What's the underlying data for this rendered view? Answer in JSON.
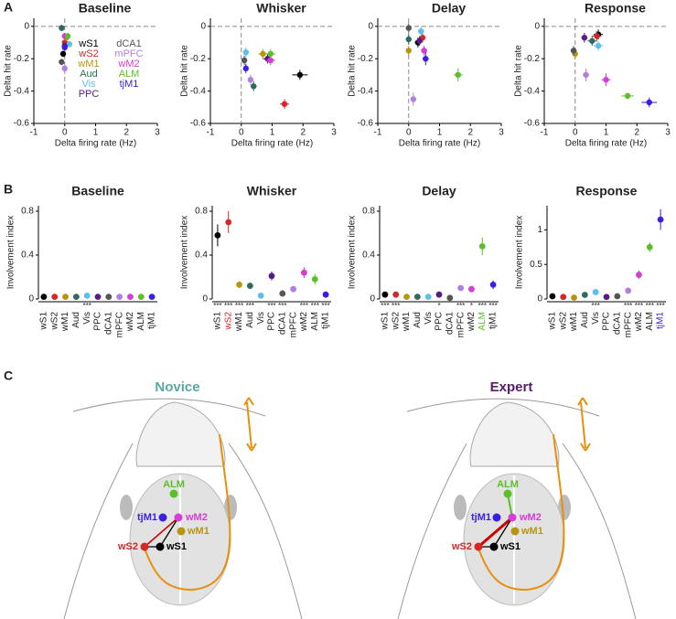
{
  "panels": [
    "A",
    "B",
    "C"
  ],
  "chart_data": [
    {
      "type": "scatter",
      "title": "Baseline",
      "xlabel": "Delta firing rate (Hz)",
      "ylabel": "Delta hit rate",
      "categories": [
        "wS1",
        "wS2",
        "wM1",
        "Aud",
        "Vis",
        "PPC",
        "dCA1",
        "mPFC",
        "wM2",
        "ALM",
        "tjM1"
      ],
      "colors": [
        "#000000",
        "#d62728",
        "#b8960c",
        "#2e6b5e",
        "#5bc0eb",
        "#5a1a8a",
        "#555555",
        "#b07fe0",
        "#d63cd6",
        "#5cbf2a",
        "#3a1fe0"
      ],
      "x": [
        -0.05,
        0,
        0.05,
        -0.1,
        0.15,
        0,
        -0.1,
        0,
        0,
        0.1,
        0
      ],
      "y": [
        -0.17,
        -0.1,
        -0.07,
        -0.01,
        -0.11,
        -0.12,
        -0.22,
        -0.26,
        -0.06,
        -0.06,
        -0.13
      ],
      "xerr": [
        0.05,
        0.05,
        0.05,
        0.05,
        0.08,
        0.05,
        0.05,
        0.05,
        0.05,
        0.05,
        0.05
      ],
      "yerr": [
        0.02,
        0.02,
        0.02,
        0.02,
        0.02,
        0.02,
        0.02,
        0.02,
        0.02,
        0.02,
        0.02
      ],
      "xlim": [
        -1,
        3
      ],
      "ylim": [
        -0.6,
        0.05
      ],
      "xticks": [
        -1,
        0,
        1,
        2,
        3
      ],
      "yticks": [
        -0.6,
        -0.4,
        -0.2,
        0
      ],
      "vline": 0,
      "hline": 0
    },
    {
      "type": "scatter",
      "title": "Whisker",
      "xlabel": "Delta firing rate (Hz)",
      "ylabel": "Delta hit rate",
      "colors": [
        "#000000",
        "#d62728",
        "#b8960c",
        "#2e6b5e",
        "#5bc0eb",
        "#5a1a8a",
        "#555555",
        "#b07fe0",
        "#d63cd6",
        "#5cbf2a",
        "#3a1fe0"
      ],
      "x": [
        1.9,
        1.4,
        0.7,
        0.4,
        0.15,
        0.85,
        0.1,
        0.3,
        0.95,
        0.95,
        0.15
      ],
      "y": [
        -0.3,
        -0.48,
        -0.17,
        -0.37,
        -0.16,
        -0.2,
        -0.21,
        -0.33,
        -0.21,
        -0.17,
        -0.26
      ],
      "xerr": [
        0.25,
        0.15,
        0.15,
        0.1,
        0.05,
        0.15,
        0.05,
        0.05,
        0.15,
        0.15,
        0.05
      ],
      "yerr": [
        0.03,
        0.03,
        0.03,
        0.03,
        0.03,
        0.03,
        0.03,
        0.03,
        0.03,
        0.03,
        0.03
      ],
      "xlim": [
        -1,
        3
      ],
      "ylim": [
        -0.6,
        0.05
      ],
      "xticks": [
        -1,
        0,
        1,
        2,
        3
      ],
      "yticks": [
        -0.6,
        -0.4,
        -0.2,
        0
      ],
      "vline": 0,
      "hline": 0
    },
    {
      "type": "scatter",
      "title": "Delay",
      "xlabel": "Delta firing rate (Hz)",
      "ylabel": "Delta hit rate",
      "colors": [
        "#000000",
        "#d62728",
        "#b8960c",
        "#2e6b5e",
        "#5bc0eb",
        "#5a1a8a",
        "#555555",
        "#b07fe0",
        "#d63cd6",
        "#5cbf2a",
        "#3a1fe0"
      ],
      "x": [
        0.3,
        0.45,
        0,
        0,
        0.4,
        0.35,
        0,
        0.15,
        0.5,
        1.6,
        0.55
      ],
      "y": [
        -0.1,
        -0.07,
        -0.15,
        -0.08,
        -0.03,
        -0.09,
        -0.01,
        -0.45,
        -0.15,
        -0.3,
        -0.2
      ],
      "xerr": [
        0.1,
        0.1,
        0.05,
        0.05,
        0.1,
        0.1,
        0.05,
        0.05,
        0.1,
        0.15,
        0.1
      ],
      "yerr": [
        0.03,
        0.03,
        0.03,
        0.03,
        0.03,
        0.03,
        0.03,
        0.04,
        0.03,
        0.04,
        0.04
      ],
      "xlim": [
        -1,
        3
      ],
      "ylim": [
        -0.6,
        0.05
      ],
      "xticks": [
        -1,
        0,
        1,
        2,
        3
      ],
      "yticks": [
        -0.6,
        -0.4,
        -0.2,
        0
      ],
      "vline": 0,
      "hline": 0
    },
    {
      "type": "scatter",
      "title": "Response",
      "xlabel": "Delta firing rate (Hz)",
      "ylabel": "Delta hit rate",
      "colors": [
        "#000000",
        "#d62728",
        "#b8960c",
        "#2e6b5e",
        "#5bc0eb",
        "#5a1a8a",
        "#555555",
        "#b07fe0",
        "#d63cd6",
        "#5cbf2a",
        "#3a1fe0"
      ],
      "x": [
        0.75,
        0.7,
        0,
        0.55,
        0.75,
        0.3,
        -0.05,
        0.35,
        1,
        1.7,
        2.4
      ],
      "y": [
        -0.05,
        -0.06,
        -0.17,
        -0.09,
        -0.12,
        -0.07,
        -0.15,
        -0.3,
        -0.33,
        -0.43,
        -0.47
      ],
      "xerr": [
        0.15,
        0.15,
        0.1,
        0.15,
        0.15,
        0.1,
        0.1,
        0.1,
        0.15,
        0.2,
        0.25
      ],
      "yerr": [
        0.03,
        0.03,
        0.03,
        0.03,
        0.03,
        0.03,
        0.03,
        0.04,
        0.04,
        0.02,
        0.03
      ],
      "xlim": [
        -1,
        3
      ],
      "ylim": [
        -0.6,
        0.05
      ],
      "xticks": [
        -1,
        0,
        1,
        2,
        3
      ],
      "yticks": [
        -0.6,
        -0.4,
        -0.2,
        0
      ],
      "vline": 0,
      "hline": 0
    },
    {
      "type": "dot",
      "title": "Baseline",
      "ylabel": "Involvement index",
      "categories": [
        "wS1",
        "wS2",
        "wM1",
        "Aud",
        "Vis",
        "PPC",
        "dCA1",
        "mPFC",
        "wM2",
        "ALM",
        "tjM1"
      ],
      "colors": [
        "#000000",
        "#d62728",
        "#b8960c",
        "#2e6b5e",
        "#5bc0eb",
        "#5a1a8a",
        "#555555",
        "#b07fe0",
        "#d63cd6",
        "#5cbf2a",
        "#3a1fe0"
      ],
      "values": [
        0.02,
        0.02,
        0.02,
        0.02,
        0.03,
        0.02,
        0.02,
        0.02,
        0.02,
        0.02,
        0.02
      ],
      "errors": [
        0.01,
        0.01,
        0.01,
        0.01,
        0.01,
        0.01,
        0.01,
        0.01,
        0.01,
        0.01,
        0.01
      ],
      "annotations": [
        null,
        null,
        null,
        null,
        "***",
        null,
        null,
        null,
        null,
        null,
        null
      ],
      "ylim": [
        0,
        0.85
      ],
      "yticks": [
        0,
        0.4,
        0.8
      ]
    },
    {
      "type": "dot",
      "title": "Whisker",
      "ylabel": "Involvement index",
      "categories": [
        "wS1",
        "wS2",
        "wM1",
        "Aud",
        "Vis",
        "PPC",
        "dCA1",
        "mPFC",
        "wM2",
        "ALM",
        "tjM1"
      ],
      "colors": [
        "#000000",
        "#d62728",
        "#b8960c",
        "#2e6b5e",
        "#5bc0eb",
        "#5a1a8a",
        "#555555",
        "#b07fe0",
        "#d63cd6",
        "#5cbf2a",
        "#3a1fe0"
      ],
      "values": [
        0.58,
        0.7,
        0.13,
        0.12,
        0.03,
        0.21,
        0.05,
        0.09,
        0.24,
        0.18,
        0.04
      ],
      "errors": [
        0.1,
        0.1,
        0.03,
        0.03,
        0.01,
        0.04,
        0.03,
        0.02,
        0.05,
        0.05,
        0.01
      ],
      "annotations": [
        "***",
        "***",
        "***",
        "***",
        null,
        "***",
        "***",
        null,
        "***",
        "***",
        "***"
      ],
      "ylim": [
        0,
        0.85
      ],
      "yticks": [
        0,
        0.4,
        0.8
      ],
      "highlight": 1
    },
    {
      "type": "dot",
      "title": "Delay",
      "ylabel": "Involvement index",
      "categories": [
        "wS1",
        "wS2",
        "wM1",
        "Aud",
        "Vis",
        "PPC",
        "dCA1",
        "mPFC",
        "wM2",
        "ALM",
        "tjM1"
      ],
      "colors": [
        "#000000",
        "#d62728",
        "#b8960c",
        "#2e6b5e",
        "#5bc0eb",
        "#5a1a8a",
        "#555555",
        "#b07fe0",
        "#d63cd6",
        "#5cbf2a",
        "#3a1fe0"
      ],
      "values": [
        0.04,
        0.04,
        0.02,
        0.02,
        0.02,
        0.04,
        0.01,
        0.1,
        0.09,
        0.48,
        0.13
      ],
      "errors": [
        0.01,
        0.01,
        0.01,
        0.01,
        0.01,
        0.01,
        0.01,
        0.02,
        0.02,
        0.08,
        0.04
      ],
      "annotations": [
        "***",
        "***",
        null,
        null,
        null,
        "*",
        null,
        "***",
        "*",
        "***",
        "***"
      ],
      "ylim": [
        0,
        0.85
      ],
      "yticks": [
        0,
        0.4,
        0.8
      ],
      "highlight": 9
    },
    {
      "type": "dot",
      "title": "Response",
      "ylabel": "Involvement index",
      "categories": [
        "wS1",
        "wS2",
        "wM1",
        "Aud",
        "Vis",
        "PPC",
        "dCA1",
        "mPFC",
        "wM2",
        "ALM",
        "tjM1"
      ],
      "colors": [
        "#000000",
        "#d62728",
        "#b8960c",
        "#2e6b5e",
        "#5bc0eb",
        "#5a1a8a",
        "#555555",
        "#b07fe0",
        "#d63cd6",
        "#5cbf2a",
        "#3a1fe0"
      ],
      "values": [
        0.04,
        0.03,
        0.02,
        0.06,
        0.1,
        0.03,
        0.04,
        0.12,
        0.35,
        0.75,
        1.15
      ],
      "errors": [
        0.01,
        0.01,
        0.01,
        0.02,
        0.02,
        0.01,
        0.01,
        0.02,
        0.06,
        0.07,
        0.15
      ],
      "annotations": [
        null,
        null,
        null,
        null,
        "***",
        null,
        null,
        "***",
        "***",
        "***",
        "***"
      ],
      "ylim": [
        0,
        1.35
      ],
      "yticks": [
        0,
        0.5,
        1
      ],
      "highlight": 10
    }
  ],
  "diagram": {
    "brains": [
      {
        "title": "Novice",
        "color": "#5aa8a0",
        "nodes": [
          {
            "label": "ALM",
            "color": "#5cbf2a"
          },
          {
            "label": "tjM1",
            "color": "#3a1fe0"
          },
          {
            "label": "wM2",
            "color": "#d63cd6"
          },
          {
            "label": "wM1",
            "color": "#b8960c"
          },
          {
            "label": "wS1",
            "color": "#000000"
          },
          {
            "label": "wS2",
            "color": "#d62728"
          }
        ]
      },
      {
        "title": "Expert",
        "color": "#5a1a6e",
        "nodes": [
          {
            "label": "ALM",
            "color": "#5cbf2a"
          },
          {
            "label": "tjM1",
            "color": "#3a1fe0"
          },
          {
            "label": "wM2",
            "color": "#d63cd6"
          },
          {
            "label": "wM1",
            "color": "#b8960c"
          },
          {
            "label": "wS1",
            "color": "#000000"
          },
          {
            "label": "wS2",
            "color": "#d62728"
          }
        ]
      }
    ]
  }
}
